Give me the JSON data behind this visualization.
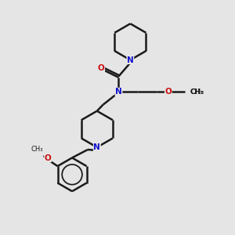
{
  "bg_color": "#e5e5e5",
  "bond_color": "#1a1a1a",
  "n_color": "#1010cc",
  "o_color": "#cc1010",
  "line_width": 1.8,
  "font_size": 7.5,
  "fig_size": [
    3.0,
    3.0
  ],
  "dpi": 100,
  "xlim": [
    0,
    10
  ],
  "ylim": [
    0,
    10
  ]
}
